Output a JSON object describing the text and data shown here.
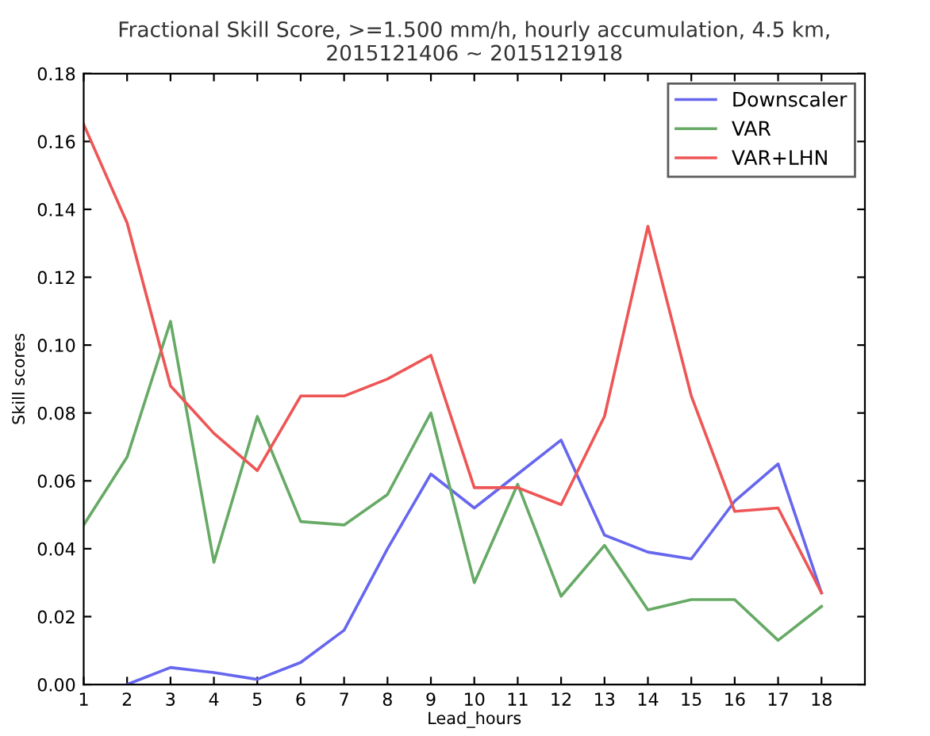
{
  "chart_data": {
    "type": "line",
    "title": "Fractional Skill Score, >=1.500 mm/h, hourly accumulation, 4.5 km,\n2015121406 ~ 2015121918",
    "xlabel": "Lead_hours",
    "ylabel": "Skill scores",
    "x": [
      1,
      2,
      3,
      4,
      5,
      6,
      7,
      8,
      9,
      10,
      11,
      12,
      13,
      14,
      15,
      16,
      17,
      18
    ],
    "series": [
      {
        "name": "Downscaler",
        "color": "#6666ee",
        "values": [
          null,
          0,
          0.005,
          0.0035,
          0.0015,
          0.0065,
          0.016,
          0.04,
          0.062,
          0.052,
          0.062,
          0.072,
          0.044,
          0.039,
          0.037,
          0.054,
          0.065,
          0.027
        ]
      },
      {
        "name": "VAR",
        "color": "#66aa66",
        "values": [
          0.047,
          0.067,
          0.107,
          0.036,
          0.079,
          0.048,
          0.047,
          0.056,
          0.08,
          0.03,
          0.059,
          0.026,
          0.041,
          0.022,
          0.025,
          0.025,
          0.013,
          0.023
        ]
      },
      {
        "name": "VAR+LHN",
        "color": "#ee5555",
        "values": [
          0.165,
          0.136,
          0.088,
          0.074,
          0.063,
          0.085,
          0.085,
          0.09,
          0.097,
          0.058,
          0.058,
          0.053,
          0.079,
          0.135,
          0.085,
          0.051,
          0.052,
          0.027
        ]
      }
    ],
    "xlim": [
      1,
      19
    ],
    "xticks": [
      1,
      2,
      3,
      4,
      5,
      6,
      7,
      8,
      9,
      10,
      11,
      12,
      13,
      14,
      15,
      16,
      17,
      18
    ],
    "ylim": [
      0,
      0.18
    ],
    "yticks": [
      {
        "value": 0,
        "label": "0.00"
      },
      {
        "value": 0.02,
        "label": "0.02"
      },
      {
        "value": 0.04,
        "label": "0.04"
      },
      {
        "value": 0.06,
        "label": "0.06"
      },
      {
        "value": 0.08,
        "label": "0.08"
      },
      {
        "value": 0.1,
        "label": "0.10"
      },
      {
        "value": 0.12,
        "label": "0.12"
      },
      {
        "value": 0.14,
        "label": "0.14"
      },
      {
        "value": 0.16,
        "label": "0.16"
      },
      {
        "value": 0.18,
        "label": "0.18"
      }
    ],
    "grid": false,
    "legend": "top right"
  }
}
